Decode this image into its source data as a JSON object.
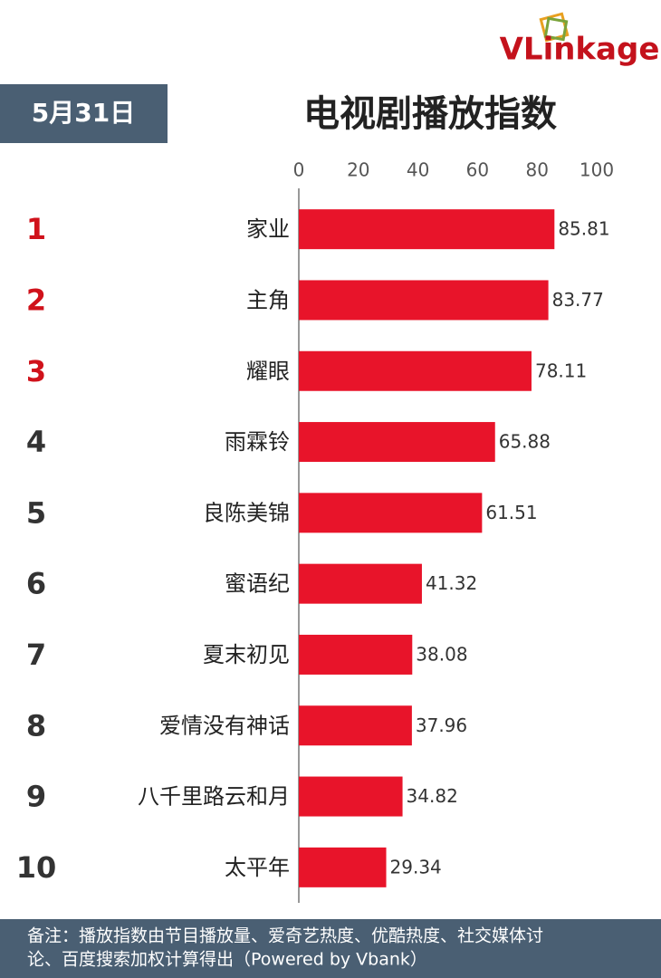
{
  "chart_data": {
    "type": "bar",
    "orientation": "horizontal",
    "logo": "VLinkage",
    "date_label": "5月31日",
    "title": "电视剧播放指数",
    "ranks": [
      1,
      2,
      3,
      4,
      5,
      6,
      7,
      8,
      9,
      10
    ],
    "rank_colors": [
      "#d0121b",
      "#d0121b",
      "#d0121b",
      "#333333",
      "#333333",
      "#333333",
      "#333333",
      "#333333",
      "#333333",
      "#333333"
    ],
    "categories": [
      "家业",
      "主角",
      "耀眼",
      "雨霖铃",
      "良陈美锦",
      "蜜语纪",
      "夏末初见",
      "爱情没有神话",
      "八千里路云和月",
      "太平年"
    ],
    "values": [
      85.81,
      83.77,
      78.11,
      65.88,
      61.51,
      41.32,
      38.08,
      37.96,
      34.82,
      29.34
    ],
    "color": "#e8142a",
    "xlim": [
      0,
      100
    ],
    "xticks": [
      0,
      20,
      40,
      60,
      80,
      100
    ],
    "note": [
      "备注：播放指数由节目播放量、爱奇艺热度、优酷热度、社交媒体讨",
      "论、百度搜索加权计算得出（Powered by Vbank）"
    ]
  }
}
